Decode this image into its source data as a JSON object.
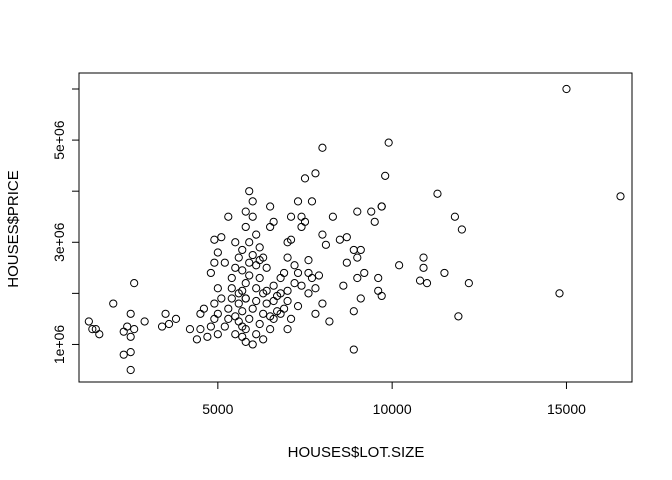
{
  "chart_data": {
    "type": "scatter",
    "title": "",
    "xlabel": "HOUSES$LOT.SIZE",
    "ylabel": "HOUSES$PRICE",
    "xlim": [
      1290,
      16550
    ],
    "ylim": [
      500000,
      6000000
    ],
    "x_ticks": [
      {
        "value": 5000,
        "label": "5000"
      },
      {
        "value": 10000,
        "label": "10000"
      },
      {
        "value": 15000,
        "label": "15000"
      }
    ],
    "y_ticks": [
      {
        "value": 1000000,
        "label": "1e+06"
      },
      {
        "value": 2000000,
        "label": null
      },
      {
        "value": 3000000,
        "label": "3e+06"
      },
      {
        "value": 4000000,
        "label": null
      },
      {
        "value": 5000000,
        "label": "5e+06"
      },
      {
        "value": 6000000,
        "label": null
      }
    ],
    "grid": false,
    "legend": "none",
    "marker": "open-circle",
    "points": [
      [
        15000,
        6000000
      ],
      [
        16550,
        3900000
      ],
      [
        14800,
        2000000
      ],
      [
        9900,
        4950000
      ],
      [
        8000,
        4850000
      ],
      [
        7800,
        4350000
      ],
      [
        7500,
        4250000
      ],
      [
        9800,
        4300000
      ],
      [
        11300,
        3950000
      ],
      [
        11800,
        3500000
      ],
      [
        12000,
        3250000
      ],
      [
        11500,
        2400000
      ],
      [
        12200,
        2200000
      ],
      [
        11900,
        1550000
      ],
      [
        10900,
        2700000
      ],
      [
        10900,
        2500000
      ],
      [
        11000,
        2200000
      ],
      [
        10800,
        2250000
      ],
      [
        10200,
        2550000
      ],
      [
        9700,
        3700000
      ],
      [
        9700,
        3700000
      ],
      [
        9400,
        3600000
      ],
      [
        9000,
        3600000
      ],
      [
        9500,
        3400000
      ],
      [
        8700,
        3100000
      ],
      [
        8500,
        3050000
      ],
      [
        8900,
        2850000
      ],
      [
        9100,
        2850000
      ],
      [
        9000,
        2700000
      ],
      [
        9200,
        2400000
      ],
      [
        9600,
        2300000
      ],
      [
        9000,
        2300000
      ],
      [
        8700,
        2600000
      ],
      [
        9700,
        1950000
      ],
      [
        9600,
        2050000
      ],
      [
        9100,
        1900000
      ],
      [
        8900,
        1650000
      ],
      [
        8900,
        900000
      ],
      [
        8600,
        2150000
      ],
      [
        8300,
        3500000
      ],
      [
        8000,
        3150000
      ],
      [
        8100,
        2950000
      ],
      [
        8200,
        1450000
      ],
      [
        7800,
        1600000
      ],
      [
        7800,
        2100000
      ],
      [
        7700,
        2300000
      ],
      [
        7600,
        2400000
      ],
      [
        7600,
        2650000
      ],
      [
        7400,
        3500000
      ],
      [
        7500,
        3400000
      ],
      [
        7400,
        3300000
      ],
      [
        7700,
        3800000
      ],
      [
        7300,
        3800000
      ],
      [
        7100,
        3500000
      ],
      [
        7000,
        3000000
      ],
      [
        7100,
        3050000
      ],
      [
        7000,
        2700000
      ],
      [
        7200,
        2550000
      ],
      [
        7300,
        2400000
      ],
      [
        7200,
        2200000
      ],
      [
        7000,
        2050000
      ],
      [
        7000,
        1850000
      ],
      [
        6900,
        1700000
      ],
      [
        7100,
        1500000
      ],
      [
        7000,
        1300000
      ],
      [
        6800,
        2300000
      ],
      [
        6800,
        2000000
      ],
      [
        6600,
        1850000
      ],
      [
        6800,
        1600000
      ],
      [
        6600,
        1500000
      ],
      [
        6500,
        1300000
      ],
      [
        6500,
        3300000
      ],
      [
        6600,
        3400000
      ],
      [
        6500,
        3700000
      ],
      [
        6400,
        2500000
      ],
      [
        6300,
        2700000
      ],
      [
        6200,
        2900000
      ],
      [
        6100,
        3150000
      ],
      [
        6000,
        3500000
      ],
      [
        6000,
        3800000
      ],
      [
        5900,
        3000000
      ],
      [
        5800,
        3300000
      ],
      [
        5800,
        3600000
      ],
      [
        5900,
        4000000
      ],
      [
        6000,
        2750000
      ],
      [
        6100,
        2550000
      ],
      [
        5900,
        2350000
      ],
      [
        5800,
        2200000
      ],
      [
        5700,
        2450000
      ],
      [
        5700,
        2050000
      ],
      [
        5800,
        1900000
      ],
      [
        5600,
        1800000
      ],
      [
        5700,
        1650000
      ],
      [
        5600,
        1450000
      ],
      [
        5800,
        1300000
      ],
      [
        5700,
        1150000
      ],
      [
        5800,
        1050000
      ],
      [
        6100,
        1200000
      ],
      [
        6200,
        1400000
      ],
      [
        6300,
        1600000
      ],
      [
        6400,
        1800000
      ],
      [
        6300,
        2000000
      ],
      [
        6100,
        2100000
      ],
      [
        6200,
        2300000
      ],
      [
        5900,
        1500000
      ],
      [
        6000,
        1700000
      ],
      [
        6100,
        1850000
      ],
      [
        5900,
        2600000
      ],
      [
        5600,
        2700000
      ],
      [
        5500,
        3000000
      ],
      [
        5500,
        2500000
      ],
      [
        5400,
        2300000
      ],
      [
        5400,
        2100000
      ],
      [
        5400,
        1900000
      ],
      [
        5300,
        1700000
      ],
      [
        5300,
        1500000
      ],
      [
        5200,
        1350000
      ],
      [
        5500,
        1200000
      ],
      [
        5200,
        2600000
      ],
      [
        5300,
        3500000
      ],
      [
        5100,
        3100000
      ],
      [
        5000,
        2800000
      ],
      [
        4900,
        2600000
      ],
      [
        4800,
        2400000
      ],
      [
        5000,
        2100000
      ],
      [
        5100,
        1900000
      ],
      [
        4900,
        1800000
      ],
      [
        5000,
        1600000
      ],
      [
        4900,
        1500000
      ],
      [
        4800,
        1350000
      ],
      [
        5000,
        1200000
      ],
      [
        4700,
        1150000
      ],
      [
        4900,
        3050000
      ],
      [
        4600,
        1700000
      ],
      [
        4500,
        1600000
      ],
      [
        4500,
        1300000
      ],
      [
        4400,
        1100000
      ],
      [
        4200,
        1300000
      ],
      [
        3800,
        1500000
      ],
      [
        3500,
        1600000
      ],
      [
        3600,
        1400000
      ],
      [
        3400,
        1350000
      ],
      [
        2900,
        1450000
      ],
      [
        2600,
        1300000
      ],
      [
        2500,
        1600000
      ],
      [
        2600,
        2200000
      ],
      [
        2400,
        1350000
      ],
      [
        2300,
        1250000
      ],
      [
        2500,
        1150000
      ],
      [
        2500,
        850000
      ],
      [
        2300,
        800000
      ],
      [
        2500,
        500000
      ],
      [
        2000,
        1800000
      ],
      [
        1500,
        1300000
      ],
      [
        1600,
        1200000
      ],
      [
        1300,
        1450000
      ],
      [
        1400,
        1300000
      ],
      [
        6500,
        1550000
      ],
      [
        6700,
        1950000
      ],
      [
        7300,
        1750000
      ],
      [
        7600,
        2000000
      ],
      [
        8000,
        1800000
      ],
      [
        5600,
        2000000
      ],
      [
        5700,
        1350000
      ],
      [
        6000,
        1000000
      ],
      [
        5500,
        1550000
      ],
      [
        6300,
        1100000
      ],
      [
        6600,
        2150000
      ],
      [
        6200,
        2650000
      ],
      [
        5700,
        2850000
      ],
      [
        6900,
        2400000
      ],
      [
        7900,
        2350000
      ],
      [
        7400,
        2150000
      ],
      [
        5800,
        1900000
      ],
      [
        6400,
        2050000
      ],
      [
        6700,
        1650000
      ]
    ]
  }
}
